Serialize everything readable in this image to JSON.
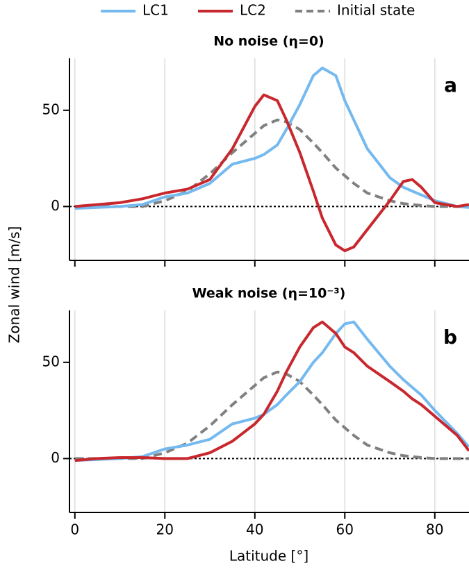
{
  "xlabel": "Latitude [°]",
  "ylabel": "Zonal wind [m/s]",
  "chart_data": [
    {
      "type": "line",
      "title": "No noise (η=0)",
      "panel_label": "a",
      "x": [
        0,
        5,
        10,
        15,
        20,
        25,
        30,
        35,
        40,
        42,
        45,
        47,
        50,
        53,
        55,
        58,
        60,
        62,
        65,
        70,
        73,
        75,
        77,
        80,
        85,
        87.6
      ],
      "series": [
        {
          "name": "LC1",
          "color": "#74b9ef",
          "dash": false,
          "values": [
            -1,
            -0.5,
            0,
            1,
            5,
            7,
            12,
            22,
            25,
            27,
            32,
            40,
            53,
            68,
            72,
            68,
            55,
            45,
            30,
            15,
            10,
            8,
            6,
            3,
            0,
            -0.5
          ]
        },
        {
          "name": "LC2",
          "color": "#c8282d",
          "dash": false,
          "values": [
            0,
            1,
            2,
            4,
            7,
            9,
            14,
            30,
            52,
            58,
            55,
            45,
            28,
            8,
            -6,
            -20,
            -23,
            -21,
            -12,
            3,
            13,
            14,
            10,
            2,
            0,
            1
          ]
        },
        {
          "name": "Initial state",
          "color": "#808080",
          "dash": true,
          "values": [
            0,
            0,
            0,
            0,
            3,
            8,
            17,
            28,
            38,
            42,
            45,
            44,
            40,
            33,
            28,
            20,
            16,
            12,
            7,
            3,
            1.5,
            1,
            0.5,
            0,
            0,
            0
          ]
        }
      ],
      "xlim": [
        -1.2,
        87.6
      ],
      "ylim": [
        -28,
        77
      ],
      "xticks": [
        0,
        20,
        40,
        60,
        80
      ],
      "yticks": [
        0,
        50
      ],
      "xticklabels": false,
      "grid": true,
      "zero_line": true
    },
    {
      "type": "line",
      "title": "Weak noise (η=10⁻³)",
      "panel_label": "b",
      "x": [
        0,
        5,
        10,
        15,
        20,
        25,
        30,
        35,
        40,
        42,
        45,
        47,
        50,
        53,
        55,
        58,
        60,
        62,
        65,
        70,
        73,
        75,
        77,
        80,
        85,
        87.6
      ],
      "series": [
        {
          "name": "LC1",
          "color": "#74b9ef",
          "dash": false,
          "values": [
            -1,
            -0.5,
            0,
            1,
            5,
            7,
            10,
            18,
            21,
            23,
            28,
            33,
            40,
            50,
            55,
            65,
            70,
            71,
            62,
            48,
            41,
            37,
            33,
            25,
            13,
            6
          ]
        },
        {
          "name": "LC2",
          "color": "#c8282d",
          "dash": false,
          "values": [
            -1,
            0,
            0.5,
            0.5,
            0,
            0,
            3,
            9,
            18,
            23,
            35,
            45,
            58,
            68,
            71,
            65,
            58,
            55,
            48,
            40,
            35,
            31,
            28,
            22,
            12,
            4
          ]
        },
        {
          "name": "Initial state",
          "color": "#808080",
          "dash": true,
          "values": [
            0,
            0,
            0,
            0,
            3,
            8,
            17,
            28,
            38,
            42,
            45,
            44,
            40,
            33,
            28,
            20,
            16,
            12,
            7,
            3,
            1.5,
            1,
            0.5,
            0,
            0,
            0
          ]
        }
      ],
      "xlim": [
        -1.2,
        87.6
      ],
      "ylim": [
        -28,
        77
      ],
      "xticks": [
        0,
        20,
        40,
        60,
        80
      ],
      "yticks": [
        0,
        50
      ],
      "xticklabels": true,
      "grid": true,
      "zero_line": true
    }
  ]
}
